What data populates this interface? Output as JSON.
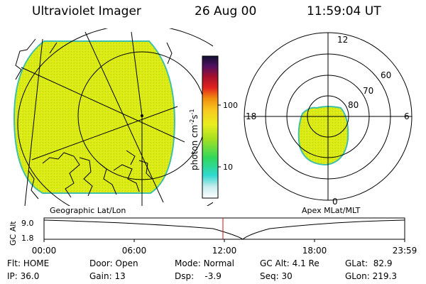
{
  "header": {
    "instrument": "Ultraviolet Imager",
    "date": "26 Aug 00",
    "time": "11:59:04 UT"
  },
  "colorbar": {
    "unit_label": "photon cm",
    "unit_sup1": "-2",
    "unit_mid": "s",
    "unit_sup2": "-1",
    "tick_100": "100",
    "tick_10": "10"
  },
  "left_panel": {
    "caption": "Geographic Lat/Lon"
  },
  "right_panel": {
    "caption": "Apex MLat/MLT",
    "mlt_12": "12",
    "mlt_18": "18",
    "mlt_6": "6",
    "mlt_0": "0",
    "lat_60": "60",
    "lat_70": "70",
    "lat_80": "80"
  },
  "altitude_strip": {
    "axis_label": "GC Alt",
    "tick_high": "9.0",
    "tick_low": "1.8",
    "time_ticks": [
      "00:00",
      "06:00",
      "12:00",
      "18:00",
      "23:59"
    ]
  },
  "status": {
    "flt_label": "Flt:",
    "flt_value": "HOME",
    "ip_label": "IP:",
    "ip_value": "36.0",
    "door_label": "Door:",
    "door_value": "Open",
    "gain_label": "Gain:",
    "gain_value": "13",
    "mode_label": "Mode:",
    "mode_value": "Normal",
    "dsp_label": "Dsp:",
    "dsp_value": "-3.9",
    "gcalt_label": "GC Alt:",
    "gcalt_value": "4.1 Re",
    "seq_label": "Seq:",
    "seq_value": "30",
    "glat_label": "GLat:",
    "glat_value": "82.9",
    "glon_label": "GLon:",
    "glon_value": "219.3"
  },
  "colors": {
    "image_fill": "#dcec12",
    "image_edge": "#3fc0a8",
    "marker": "#d01010"
  }
}
